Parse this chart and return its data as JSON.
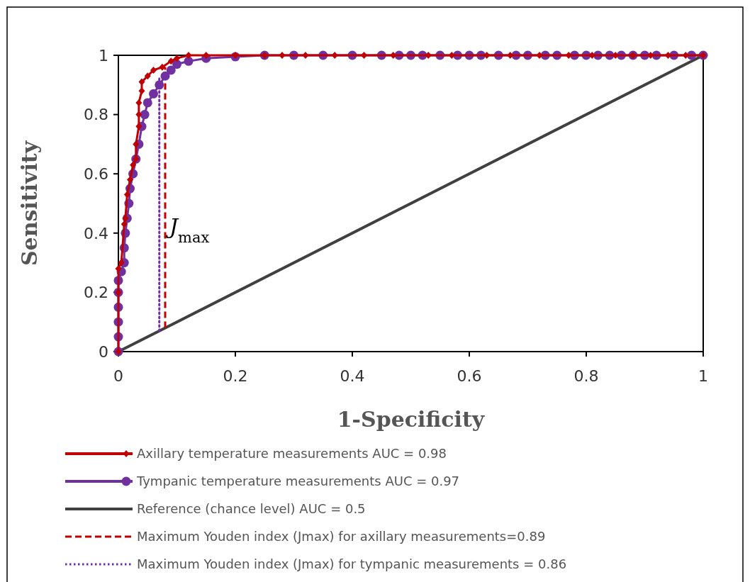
{
  "chart_data": {
    "type": "line",
    "xlabel": "1-Specificity",
    "ylabel": "Sensitivity",
    "xlim": [
      0,
      1
    ],
    "ylim": [
      0,
      1
    ],
    "xticks": [
      0,
      0.2,
      0.4,
      0.6,
      0.8,
      1
    ],
    "yticks": [
      0,
      0.2,
      0.4,
      0.6,
      0.8,
      1
    ],
    "grid": false,
    "legend": "bottom",
    "annotations": [
      {
        "text": "J$_{max}$",
        "x": 0.08,
        "y": 0.42
      }
    ],
    "series": [
      {
        "name": "Axillary temperature measurements AUC = 0.98",
        "color": "#c00000",
        "marker": "diamond",
        "line_style": "solid",
        "x": [
          0,
          0,
          0,
          0.005,
          0.01,
          0.012,
          0.015,
          0.02,
          0.025,
          0.03,
          0.03,
          0.035,
          0.035,
          0.035,
          0.04,
          0.04,
          0.05,
          0.06,
          0.075,
          0.09,
          0.1,
          0.12,
          0.15,
          0.2,
          0.25,
          0.28,
          0.32,
          0.37,
          0.42,
          0.47,
          0.53,
          0.57,
          0.63,
          0.67,
          0.72,
          0.77,
          0.81,
          0.85,
          0.88,
          0.91,
          0.94,
          0.97,
          1
        ],
        "values": [
          0,
          0.2,
          0.28,
          0.3,
          0.43,
          0.45,
          0.53,
          0.58,
          0.63,
          0.65,
          0.7,
          0.76,
          0.8,
          0.84,
          0.88,
          0.91,
          0.93,
          0.95,
          0.96,
          0.98,
          0.99,
          1,
          1,
          1,
          1,
          1,
          1,
          1,
          1,
          1,
          1,
          1,
          1,
          1,
          1,
          1,
          1,
          1,
          1,
          1,
          1,
          1,
          1
        ]
      },
      {
        "name": "Tympanic temperature measurements AUC = 0.97",
        "color": "#7030a0",
        "marker": "circle",
        "line_style": "solid",
        "x": [
          0,
          0,
          0,
          0,
          0,
          0,
          0.005,
          0.01,
          0.01,
          0.012,
          0.015,
          0.018,
          0.02,
          0.025,
          0.03,
          0.035,
          0.04,
          0.045,
          0.05,
          0.06,
          0.07,
          0.08,
          0.09,
          0.1,
          0.12,
          0.15,
          0.2,
          0.25,
          0.3,
          0.35,
          0.4,
          0.45,
          0.48,
          0.5,
          0.52,
          0.55,
          0.58,
          0.6,
          0.62,
          0.65,
          0.68,
          0.7,
          0.73,
          0.75,
          0.78,
          0.8,
          0.82,
          0.84,
          0.86,
          0.88,
          0.9,
          0.92,
          0.95,
          0.98,
          1
        ],
        "values": [
          0,
          0.05,
          0.1,
          0.15,
          0.2,
          0.24,
          0.27,
          0.3,
          0.35,
          0.4,
          0.45,
          0.5,
          0.55,
          0.6,
          0.65,
          0.7,
          0.76,
          0.8,
          0.84,
          0.87,
          0.9,
          0.93,
          0.95,
          0.97,
          0.98,
          0.99,
          0.995,
          1,
          1,
          1,
          1,
          1,
          1,
          1,
          1,
          1,
          1,
          1,
          1,
          1,
          1,
          1,
          1,
          1,
          1,
          1,
          1,
          1,
          1,
          1,
          1,
          1,
          1,
          1,
          1
        ]
      },
      {
        "name": "Reference (chance level) AUC = 0.5",
        "color": "#404040",
        "marker": "none",
        "line_style": "solid",
        "x": [
          0,
          1
        ],
        "values": [
          0,
          1
        ]
      },
      {
        "name": "Maximum Youden index (Jmax) for axillary measurements=0.89",
        "color": "#c00000",
        "marker": "none",
        "line_style": "dashed",
        "x": [
          0.08,
          0.08
        ],
        "values": [
          0.08,
          0.96
        ]
      },
      {
        "name": "Maximum Youden index (Jmax) for tympanic measurements = 0.86",
        "color": "#7030a0",
        "marker": "none",
        "line_style": "dotted",
        "x": [
          0.07,
          0.07
        ],
        "values": [
          0.07,
          0.93
        ]
      }
    ]
  }
}
